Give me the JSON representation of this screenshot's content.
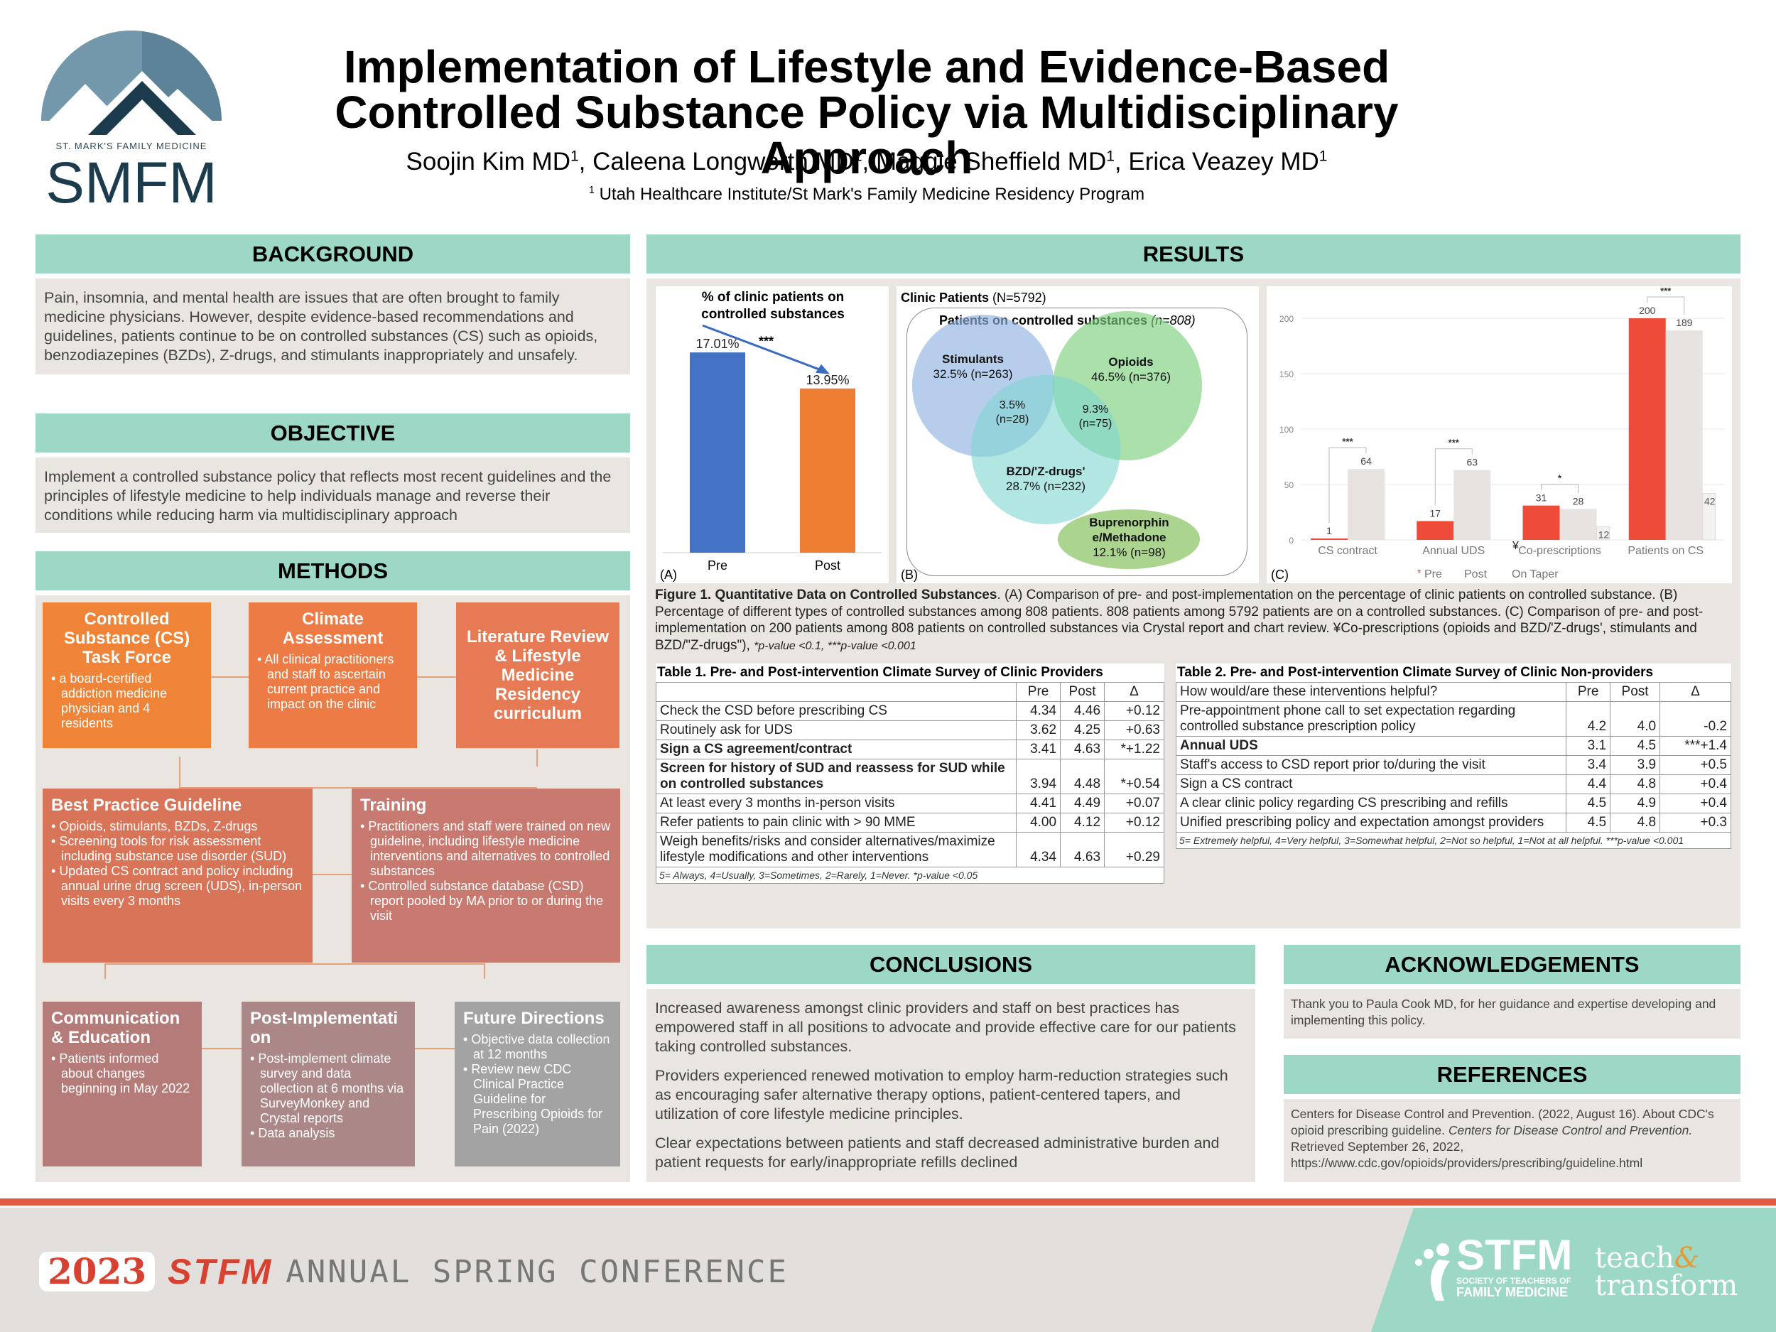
{
  "header": {
    "logo_name": "ST. MARK'S FAMILY MEDICINE",
    "logo_abbr": "SMFM",
    "title_line1": "Implementation of Lifestyle and Evidence-Based",
    "title_line2": "Controlled Substance Policy via Multidisciplinary Approach",
    "authors": [
      {
        "name": "Soojin Kim MD",
        "sup": "1",
        "sep": ", "
      },
      {
        "name": "Caleena Longworth MD",
        "sup": "1",
        "sep": ", "
      },
      {
        "name": "Maggie Sheffield MD",
        "sup": "1",
        "sep": ", "
      },
      {
        "name": "Erica Veazey MD",
        "sup": "1",
        "sep": ""
      }
    ],
    "affiliation_sup": "1",
    "affiliation": "Utah Healthcare Institute/St Mark's Family Medicine Residency Program"
  },
  "background": {
    "heading": "BACKGROUND",
    "text": "Pain, insomnia, and mental health are issues that are often brought to family medicine physicians. However, despite evidence-based recommendations and guidelines, patients continue to be on controlled substances (CS) such as opioids, benzodiazepines (BZDs), Z-drugs, and stimulants inappropriately and unsafely."
  },
  "objective": {
    "heading": "OBJECTIVE",
    "text": "Implement a controlled substance policy that reflects most recent guidelines and the principles of lifestyle medicine to help individuals manage and reverse their conditions while reducing harm via multidisciplinary approach"
  },
  "methods": {
    "heading": "METHODS",
    "task_force": {
      "title": "Controlled Substance (CS) Task Force",
      "items": [
        "a board-certified addiction medicine physician and 4 residents"
      ]
    },
    "climate": {
      "title": "Climate Assessment",
      "items": [
        "All clinical practitioners and staff to ascertain current practice and impact on the clinic"
      ]
    },
    "literature": {
      "title": "Literature Review & Lifestyle Medicine Residency curriculum"
    },
    "guideline": {
      "title": "Best Practice Guideline",
      "items": [
        "Opioids, stimulants, BZDs, Z-drugs",
        "Screening tools for risk assessment including substance use disorder (SUD)",
        "Updated CS contract and policy including annual urine drug screen (UDS), in-person visits every 3 months"
      ]
    },
    "training": {
      "title": "Training",
      "items": [
        "Practitioners and staff were trained on new guideline, including lifestyle medicine interventions and alternatives to controlled substances",
        "Controlled substance database (CSD) report pooled by MA prior to or during the visit"
      ]
    },
    "communication": {
      "title": "Communication & Education",
      "items": [
        "Patients informed about changes beginning in May 2022"
      ]
    },
    "post": {
      "title": "Post-Implementati on",
      "items": [
        "Post-implement climate survey and data collection at 6 months via SurveyMonkey and Crystal reports",
        "Data analysis"
      ]
    },
    "future": {
      "title": "Future Directions",
      "items": [
        "Objective data collection at 12 months",
        "Review new CDC Clinical Practice Guideline for Prescribing Opioids for Pain (2022)"
      ]
    }
  },
  "results": {
    "heading": "RESULTS",
    "panelA": {
      "title": "% of clinic patients on controlled substances",
      "label": "(A)",
      "signif": "***",
      "colors": {
        "pre": "#4472c4",
        "post": "#ed7d31"
      }
    },
    "panelB": {
      "label": "(B)",
      "title": "Clinic Patients",
      "title_n": "(N=5792)",
      "subtitle": "Patients on controlled substances",
      "subtitle_n": "(n=808)",
      "stimulants": {
        "name": "Stimulants",
        "pct": "32.5% (n=263)"
      },
      "opioids": {
        "name": "Opioids",
        "pct": "46.5% (n=376)"
      },
      "bzd": {
        "name": "BZD/'Z-drugs'",
        "pct": "28.7% (n=232)"
      },
      "overlap1": {
        "pct": "3.5%",
        "n": "(n=28)"
      },
      "overlap2": {
        "pct": "9.3%",
        "n": "(n=75)"
      },
      "bup": {
        "name": "Buprenorphin e/Methadone",
        "pct": "12.1% (n=98)"
      }
    },
    "panelC": {
      "label": "(C)",
      "legend_pre": "Pre",
      "legend_post": "Post",
      "pre_marker": "*",
      "yen": "¥",
      "extra_label": "On Taper",
      "colors": {
        "pre": "#ef4b3a",
        "post": "#e6e3e1"
      }
    },
    "figure_caption_bold": "Figure 1. Quantitative Data on Controlled Substances",
    "figure_caption": ". (A) Comparison of pre- and post-implementation on the percentage of clinic patients on controlled substance. (B) Percentage of different types of controlled substances among 808 patients. 808 patients among 5792 patients are on a controlled substances. (C) Comparison of pre- and post-implementation on 200 patients among 808 patients on controlled substances via Crystal report and chart review. ¥Co-prescriptions (opioids and BZD/'Z-drugs', stimulants and BZD/\"Z-drugs\"),",
    "figure_caption_p": "*p-value <0.1, ***p-value <0.001",
    "table1": {
      "caption": "Table 1. Pre- and Post-intervention Climate Survey of Clinic Providers",
      "headers": [
        "",
        "Pre",
        "Post",
        "Δ"
      ],
      "rows": [
        {
          "item": "Check the CSD before prescribing CS",
          "pre": "4.34",
          "post": "4.46",
          "delta": "+0.12",
          "bold": false
        },
        {
          "item": "Routinely ask for UDS",
          "pre": "3.62",
          "post": "4.25",
          "delta": "+0.63",
          "bold": false
        },
        {
          "item": "Sign a CS agreement/contract",
          "pre": "3.41",
          "post": "4.63",
          "delta": "*+1.22",
          "bold": true
        },
        {
          "item": "Screen for history of SUD and reassess for SUD while on controlled substances",
          "pre": "3.94",
          "post": "4.48",
          "delta": "*+0.54",
          "bold": true
        },
        {
          "item": "At least every 3 months in-person visits",
          "pre": "4.41",
          "post": "4.49",
          "delta": "+0.07",
          "bold": false
        },
        {
          "item": "Refer patients to pain clinic with > 90 MME",
          "pre": "4.00",
          "post": "4.12",
          "delta": "+0.12",
          "bold": false
        },
        {
          "item": "Weigh benefits/risks and consider alternatives/maximize lifestyle modifications and other interventions",
          "pre": "4.34",
          "post": "4.63",
          "delta": "+0.29",
          "bold": false
        }
      ],
      "note": "5= Always, 4=Usually, 3=Sometimes, 2=Rarely, 1=Never. *p-value <0.05"
    },
    "table2": {
      "caption": "Table 2. Pre- and Post-intervention Climate Survey of Clinic Non-providers",
      "headers": [
        "How would/are these interventions helpful?",
        "Pre",
        "Post",
        "Δ"
      ],
      "rows": [
        {
          "item": "Pre-appointment phone call to set expectation regarding controlled substance prescription policy",
          "pre": "4.2",
          "post": "4.0",
          "delta": "-0.2",
          "bold": false
        },
        {
          "item": "Annual UDS",
          "pre": "3.1",
          "post": "4.5",
          "delta": "***+1.4",
          "bold": true
        },
        {
          "item": "Staff's access to CSD report  prior to/during the visit",
          "pre": "3.4",
          "post": "3.9",
          "delta": "+0.5",
          "bold": false
        },
        {
          "item": "Sign a CS contract",
          "pre": "4.4",
          "post": "4.8",
          "delta": "+0.4",
          "bold": false
        },
        {
          "item": "A clear clinic policy regarding CS prescribing and refills",
          "pre": "4.5",
          "post": "4.9",
          "delta": "+0.4",
          "bold": false
        },
        {
          "item": "Unified prescribing policy and expectation amongst providers",
          "pre": "4.5",
          "post": "4.8",
          "delta": "+0.3",
          "bold": false
        }
      ],
      "note": "5= Extremely helpful, 4=Very helpful, 3=Somewhat helpful, 2=Not so helpful, 1=Not at all helpful. ***p-value <0.001"
    }
  },
  "conclusions": {
    "heading": "CONCLUSIONS",
    "paragraphs": [
      "Increased awareness amongst clinic providers and staff on best practices has empowered staff in all positions to advocate and provide effective care for our patients taking controlled substances.",
      "Providers experienced renewed motivation to employ harm-reduction strategies such as encouraging safer alternative therapy options, patient-centered tapers, and utilization of core lifestyle medicine principles.",
      "Clear expectations between patients and staff decreased administrative burden and patient requests for early/inappropriate refills declined"
    ]
  },
  "acknowledgements": {
    "heading": "ACKNOWLEDGEMENTS",
    "text": "Thank you to Paula Cook MD, for her guidance and expertise developing and implementing this policy."
  },
  "references": {
    "heading": "REFERENCES",
    "text1": "Centers for Disease Control and Prevention. (2022, August 16). About CDC's opioid prescribing guideline.",
    "text_italic": "Centers for Disease Control and Prevention.",
    "text2": "Retrieved September 26, 2022, https://www.cdc.gov/opioids/providers/prescribing/guideline.html"
  },
  "footer": {
    "year": "2023",
    "org": "STFM",
    "event": "ANNUAL SPRING CONFERENCE",
    "stfm_logo": "STFM",
    "stfm_sub1": "SOCIETY OF TEACHERS OF",
    "stfm_sub2": "FAMILY MEDICINE",
    "teach": "teach",
    "amp": "&",
    "transform": "transform"
  },
  "chart_data": [
    {
      "type": "bar",
      "label": "(A)",
      "title": "% of clinic patients on controlled substances",
      "categories": [
        "Pre",
        "Post"
      ],
      "values": [
        17.01,
        13.95
      ],
      "value_labels": [
        "17.01%",
        "13.95%"
      ],
      "annotation": "***",
      "ylim": [
        0,
        17.8
      ]
    },
    {
      "type": "bar",
      "label": "(C)",
      "categories": [
        "CS contract",
        "Annual UDS",
        "Co-prescriptions",
        "Patients on CS"
      ],
      "series": [
        {
          "name": "Pre",
          "values": [
            1,
            17,
            31,
            200
          ]
        },
        {
          "name": "Post",
          "values": [
            64,
            63,
            28,
            189
          ]
        }
      ],
      "extra_bars": [
        {
          "category": "Co-prescriptions",
          "value": 12
        },
        {
          "category": "Patients on CS",
          "value": 42
        }
      ],
      "value_labels": {
        "pre": [
          "1",
          "17",
          "31",
          "200"
        ],
        "post": [
          "64",
          "63",
          "28",
          "189"
        ],
        "extra": [
          "12",
          "42"
        ]
      },
      "significance": [
        "***",
        "***",
        "*",
        "***"
      ],
      "yticks": [
        0,
        50,
        100,
        150,
        200
      ],
      "ylim": [
        0,
        210
      ]
    }
  ]
}
